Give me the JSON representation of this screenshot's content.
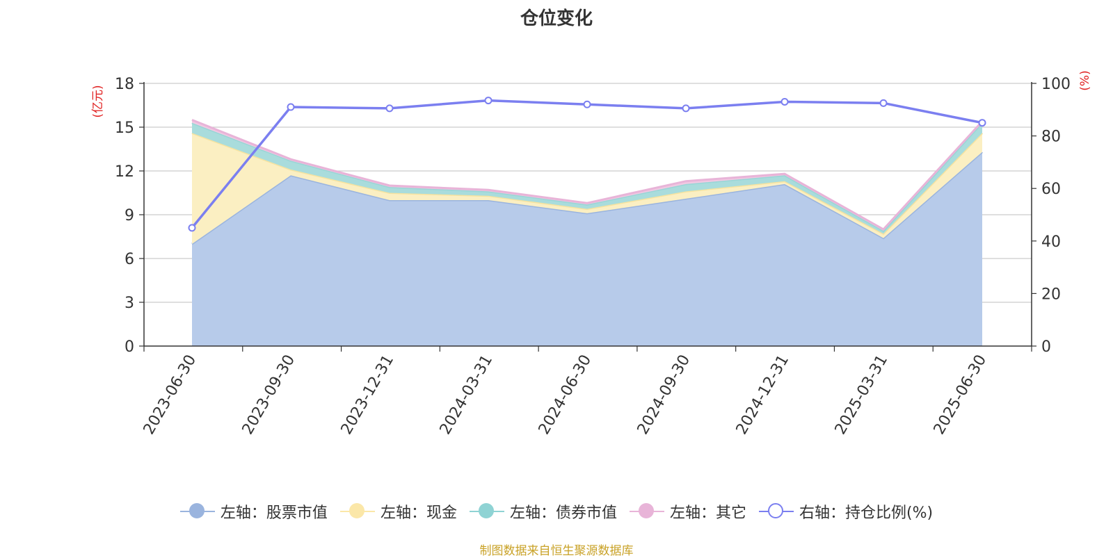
{
  "title": "仓位变化",
  "source": "制图数据来自恒生聚源数据库",
  "chart_data": {
    "type": "area",
    "title": "仓位变化",
    "x": [
      "2023-06-30",
      "2023-09-30",
      "2023-12-31",
      "2024-03-31",
      "2024-06-30",
      "2024-09-30",
      "2024-12-31",
      "2025-03-31",
      "2025-06-30"
    ],
    "y_left_label": "(亿元)",
    "y_right_label": "(%)",
    "y_left_range": [
      0,
      18
    ],
    "y_left_ticks": [
      0,
      3,
      6,
      9,
      12,
      15,
      18
    ],
    "y_right_range": [
      0,
      100
    ],
    "y_right_ticks": [
      0,
      20,
      40,
      60,
      80,
      100
    ],
    "stacked": true,
    "series": [
      {
        "name": "左轴：股票市值",
        "axis": "left",
        "color": "#9ab4de",
        "values": [
          7.0,
          11.7,
          10.0,
          10.0,
          9.1,
          10.1,
          11.1,
          7.4,
          13.3
        ]
      },
      {
        "name": "左轴：现金",
        "axis": "left",
        "color": "#fbe7a8",
        "values": [
          7.6,
          0.4,
          0.5,
          0.3,
          0.3,
          0.5,
          0.2,
          0.3,
          1.3
        ]
      },
      {
        "name": "左轴：债券市值",
        "axis": "left",
        "color": "#8fd3d4",
        "values": [
          0.7,
          0.6,
          0.4,
          0.3,
          0.3,
          0.5,
          0.4,
          0.2,
          0.7
        ]
      },
      {
        "name": "左轴：其它",
        "axis": "left",
        "color": "#e8b4d8",
        "values": [
          0.2,
          0.1,
          0.1,
          0.1,
          0.1,
          0.2,
          0.1,
          0.1,
          0.1
        ]
      },
      {
        "name": "右轴：持仓比例(%)",
        "axis": "right",
        "type": "line",
        "color": "#7b7ff0",
        "values": [
          45.0,
          91.0,
          90.5,
          93.5,
          92.0,
          90.5,
          93.0,
          92.5,
          85.0
        ]
      }
    ],
    "grid": true,
    "legend_position": "bottom"
  }
}
